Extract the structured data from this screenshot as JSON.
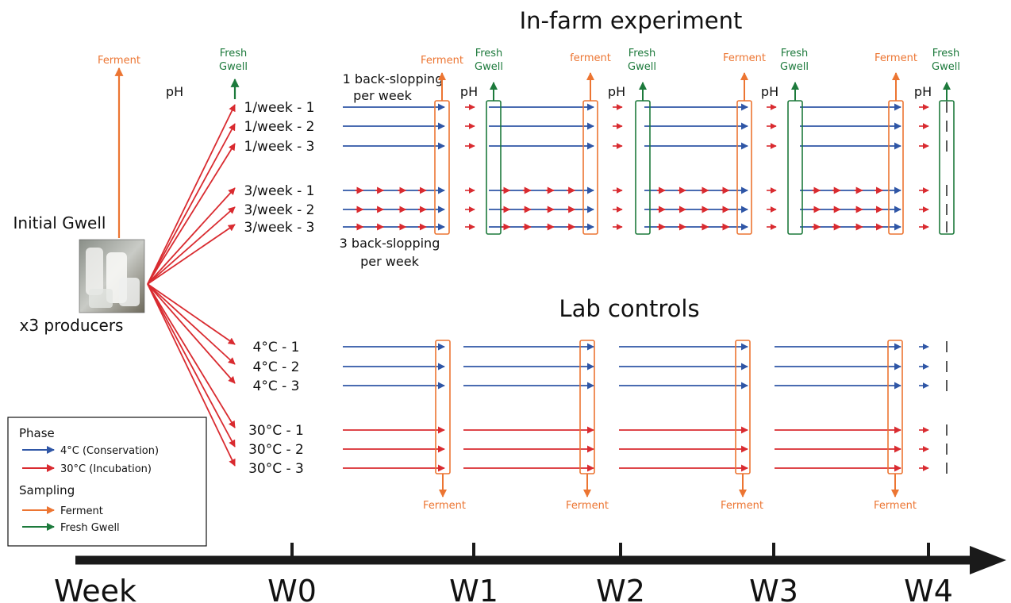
{
  "colors": {
    "blue": "#2f56a6",
    "red": "#d92b30",
    "orange": "#ec7532",
    "green": "#1d7a3c",
    "black": "#111111"
  },
  "titles": {
    "infarm": "In-farm experiment",
    "lab": "Lab controls"
  },
  "left": {
    "initial": "Initial Gwell",
    "producers": "x3 producers",
    "ferment": "Ferment",
    "ph": "pH",
    "fresh_line1": "Fresh",
    "fresh_line2": "Gwell",
    "photo_icon": "gwell-containers-photo"
  },
  "annotations": {
    "one_bs_line1": "1 back-slopping",
    "one_bs_line2": "per week",
    "three_bs_line1": "3 back-slopping",
    "three_bs_line2": "per week"
  },
  "infarm_rows": [
    "1/week - 1",
    "1/week - 2",
    "1/week - 3",
    "3/week - 1",
    "3/week - 2",
    "3/week - 3"
  ],
  "lab_rows": [
    "4°C - 1",
    "4°C - 2",
    "4°C - 3",
    "30°C - 1",
    "30°C - 2",
    "30°C - 3"
  ],
  "top_sampling": {
    "ferment_labels": [
      "Ferment",
      "ferment",
      "Ferment",
      "Ferment"
    ],
    "fresh_line1": "Fresh",
    "fresh_line2": "Gwell",
    "ph": "pH"
  },
  "lab_sampling": {
    "ferment_label": "Ferment"
  },
  "legend": {
    "phase_title": "Phase",
    "phase_items": [
      "4°C (Conservation)",
      "30°C (Incubation)"
    ],
    "sampling_title": "Sampling",
    "sampling_items": [
      "Ferment",
      "Fresh Gwell"
    ]
  },
  "timeline": {
    "label": "Week",
    "weeks": [
      "W0",
      "W1",
      "W2",
      "W3",
      "W4"
    ]
  }
}
